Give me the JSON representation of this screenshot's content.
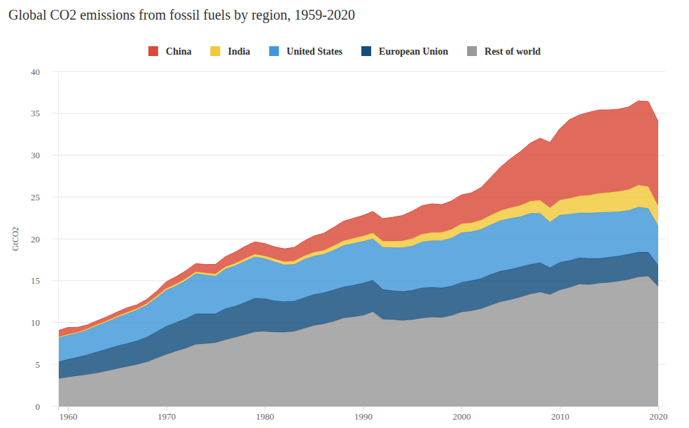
{
  "chart_data": {
    "type": "area",
    "title": "Global CO2 emissions from fossil fuels by region, 1959-2020",
    "y_label": "GtCO2",
    "stacked": true,
    "grid": true,
    "legend": "top",
    "x": [
      1959,
      1960,
      1961,
      1962,
      1963,
      1964,
      1965,
      1966,
      1967,
      1968,
      1969,
      1970,
      1971,
      1972,
      1973,
      1974,
      1975,
      1976,
      1977,
      1978,
      1979,
      1980,
      1981,
      1982,
      1983,
      1984,
      1985,
      1986,
      1987,
      1988,
      1989,
      1990,
      1991,
      1992,
      1993,
      1994,
      1995,
      1996,
      1997,
      1998,
      1999,
      2000,
      2001,
      2002,
      2003,
      2004,
      2005,
      2006,
      2007,
      2008,
      2009,
      2010,
      2011,
      2012,
      2013,
      2014,
      2015,
      2016,
      2017,
      2018,
      2019,
      2020
    ],
    "xlim": [
      1959,
      2020
    ],
    "xticks": [
      1960,
      1970,
      1980,
      1990,
      2000,
      2010,
      2020
    ],
    "ylim": [
      0,
      40
    ],
    "yticks": [
      0,
      5,
      10,
      15,
      20,
      25,
      30,
      35,
      40
    ],
    "series": [
      {
        "name": "China",
        "color": "#d94a38",
        "values": [
          0.78,
          0.8,
          0.55,
          0.44,
          0.44,
          0.45,
          0.49,
          0.53,
          0.44,
          0.47,
          0.57,
          0.77,
          0.87,
          0.92,
          0.96,
          0.98,
          1.13,
          1.19,
          1.32,
          1.45,
          1.47,
          1.46,
          1.44,
          1.53,
          1.62,
          1.76,
          1.92,
          2.02,
          2.16,
          2.32,
          2.37,
          2.44,
          2.56,
          2.67,
          2.85,
          3.02,
          3.27,
          3.38,
          3.42,
          3.3,
          3.38,
          3.44,
          3.56,
          3.88,
          4.5,
          5.18,
          5.85,
          6.42,
          6.92,
          7.4,
          7.8,
          8.5,
          9.4,
          9.65,
          9.9,
          9.95,
          9.85,
          9.8,
          9.85,
          10.05,
          10.15,
          10.05
        ]
      },
      {
        "name": "India",
        "color": "#f0c83a",
        "values": [
          0.11,
          0.12,
          0.13,
          0.14,
          0.15,
          0.16,
          0.17,
          0.18,
          0.18,
          0.19,
          0.2,
          0.21,
          0.22,
          0.23,
          0.24,
          0.25,
          0.27,
          0.28,
          0.3,
          0.3,
          0.32,
          0.33,
          0.36,
          0.38,
          0.41,
          0.43,
          0.47,
          0.5,
          0.54,
          0.58,
          0.63,
          0.66,
          0.71,
          0.75,
          0.78,
          0.82,
          0.89,
          0.93,
          0.97,
          0.99,
          1.05,
          1.06,
          1.08,
          1.11,
          1.15,
          1.22,
          1.28,
          1.36,
          1.47,
          1.57,
          1.72,
          1.8,
          1.9,
          2.05,
          2.13,
          2.3,
          2.35,
          2.44,
          2.51,
          2.64,
          2.6,
          2.4
        ]
      },
      {
        "name": "United States",
        "color": "#3f97d9",
        "values": [
          2.85,
          2.9,
          2.9,
          3.0,
          3.15,
          3.25,
          3.4,
          3.55,
          3.7,
          3.85,
          4.05,
          4.35,
          4.4,
          4.6,
          4.8,
          4.65,
          4.5,
          4.75,
          4.85,
          4.95,
          4.95,
          4.8,
          4.65,
          4.4,
          4.4,
          4.6,
          4.6,
          4.6,
          4.75,
          4.95,
          5.0,
          5.0,
          4.95,
          5.05,
          5.15,
          5.25,
          5.3,
          5.5,
          5.6,
          5.65,
          5.75,
          5.95,
          5.85,
          5.9,
          5.95,
          6.05,
          6.1,
          6.0,
          6.1,
          5.9,
          5.45,
          5.65,
          5.55,
          5.35,
          5.45,
          5.5,
          5.4,
          5.3,
          5.25,
          5.4,
          5.25,
          4.7
        ]
      },
      {
        "name": "European Union",
        "color": "#144d7c",
        "values": [
          2.0,
          2.1,
          2.2,
          2.35,
          2.5,
          2.6,
          2.7,
          2.75,
          2.8,
          2.95,
          3.15,
          3.35,
          3.4,
          3.5,
          3.65,
          3.55,
          3.45,
          3.7,
          3.7,
          3.85,
          4.0,
          3.9,
          3.75,
          3.65,
          3.6,
          3.65,
          3.7,
          3.7,
          3.75,
          3.7,
          3.75,
          3.85,
          3.75,
          3.55,
          3.45,
          3.45,
          3.5,
          3.6,
          3.55,
          3.55,
          3.5,
          3.55,
          3.6,
          3.6,
          3.65,
          3.65,
          3.6,
          3.6,
          3.55,
          3.5,
          3.2,
          3.3,
          3.2,
          3.15,
          3.1,
          2.95,
          3.0,
          3.0,
          3.0,
          2.95,
          2.85,
          2.55
        ]
      },
      {
        "name": "Rest of world",
        "color": "#999999",
        "values": [
          3.3,
          3.5,
          3.65,
          3.8,
          4.0,
          4.25,
          4.5,
          4.75,
          5.0,
          5.3,
          5.75,
          6.2,
          6.6,
          6.95,
          7.4,
          7.5,
          7.6,
          7.95,
          8.25,
          8.55,
          8.9,
          8.95,
          8.85,
          8.85,
          8.95,
          9.3,
          9.65,
          9.85,
          10.15,
          10.55,
          10.7,
          10.85,
          11.3,
          10.4,
          10.35,
          10.25,
          10.35,
          10.55,
          10.65,
          10.6,
          10.85,
          11.25,
          11.4,
          11.65,
          12.1,
          12.5,
          12.75,
          13.05,
          13.4,
          13.65,
          13.35,
          13.9,
          14.2,
          14.6,
          14.55,
          14.7,
          14.8,
          14.95,
          15.15,
          15.45,
          15.55,
          14.3
        ]
      }
    ]
  }
}
